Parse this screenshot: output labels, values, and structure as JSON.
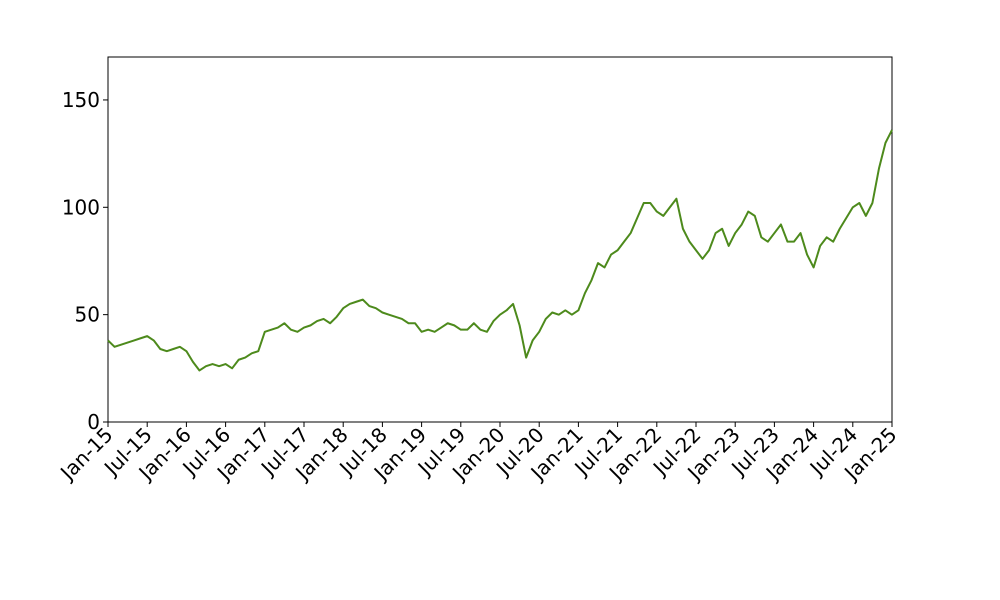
{
  "chart_data": {
    "type": "line",
    "x": [
      "2015-01",
      "2015-02",
      "2015-03",
      "2015-04",
      "2015-05",
      "2015-06",
      "2015-07",
      "2015-08",
      "2015-09",
      "2015-10",
      "2015-11",
      "2015-12",
      "2016-01",
      "2016-02",
      "2016-03",
      "2016-04",
      "2016-05",
      "2016-06",
      "2016-07",
      "2016-08",
      "2016-09",
      "2016-10",
      "2016-11",
      "2016-12",
      "2017-01",
      "2017-02",
      "2017-03",
      "2017-04",
      "2017-05",
      "2017-06",
      "2017-07",
      "2017-08",
      "2017-09",
      "2017-10",
      "2017-11",
      "2017-12",
      "2018-01",
      "2018-02",
      "2018-03",
      "2018-04",
      "2018-05",
      "2018-06",
      "2018-07",
      "2018-08",
      "2018-09",
      "2018-10",
      "2018-11",
      "2018-12",
      "2019-01",
      "2019-02",
      "2019-03",
      "2019-04",
      "2019-05",
      "2019-06",
      "2019-07",
      "2019-08",
      "2019-09",
      "2019-10",
      "2019-11",
      "2019-12",
      "2020-01",
      "2020-02",
      "2020-03",
      "2020-04",
      "2020-05",
      "2020-06",
      "2020-07",
      "2020-08",
      "2020-09",
      "2020-10",
      "2020-11",
      "2020-12",
      "2021-01",
      "2021-02",
      "2021-03",
      "2021-04",
      "2021-05",
      "2021-06",
      "2021-07",
      "2021-08",
      "2021-09",
      "2021-10",
      "2021-11",
      "2021-12",
      "2022-01",
      "2022-02",
      "2022-03",
      "2022-04",
      "2022-05",
      "2022-06",
      "2022-07",
      "2022-08",
      "2022-09",
      "2022-10",
      "2022-11",
      "2022-12",
      "2023-01",
      "2023-02",
      "2023-03",
      "2023-04",
      "2023-05",
      "2023-06",
      "2023-07",
      "2023-08",
      "2023-09",
      "2023-10",
      "2023-11",
      "2023-12",
      "2024-01",
      "2024-02",
      "2024-03",
      "2024-04",
      "2024-05",
      "2024-06",
      "2024-07",
      "2024-08",
      "2024-09",
      "2024-10",
      "2024-11",
      "2024-12",
      "2025-01"
    ],
    "values": [
      38,
      35,
      36,
      37,
      38,
      39,
      40,
      38,
      34,
      33,
      34,
      35,
      33,
      28,
      24,
      26,
      27,
      26,
      27,
      25,
      29,
      30,
      32,
      33,
      42,
      43,
      44,
      46,
      43,
      42,
      44,
      45,
      47,
      48,
      46,
      49,
      53,
      55,
      56,
      57,
      54,
      53,
      51,
      50,
      49,
      48,
      46,
      46,
      42,
      43,
      42,
      44,
      46,
      45,
      43,
      43,
      46,
      43,
      42,
      47,
      50,
      52,
      55,
      45,
      30,
      38,
      42,
      48,
      51,
      50,
      52,
      50,
      52,
      60,
      66,
      74,
      72,
      78,
      80,
      84,
      88,
      95,
      102,
      102,
      98,
      96,
      100,
      104,
      90,
      84,
      80,
      76,
      80,
      88,
      90,
      82,
      88,
      92,
      98,
      96,
      86,
      84,
      88,
      92,
      84,
      84,
      88,
      78,
      72,
      82,
      86,
      84,
      90,
      95,
      100,
      102,
      96,
      102,
      118,
      130,
      136
    ],
    "color": "#4d8a1c",
    "xlim": [
      "2015-01",
      "2025-01"
    ],
    "xticks": [
      {
        "value": "2015-01",
        "label": "Jan-15"
      },
      {
        "value": "2015-07",
        "label": "Jul-15"
      },
      {
        "value": "2016-01",
        "label": "Jan-16"
      },
      {
        "value": "2016-07",
        "label": "Jul-16"
      },
      {
        "value": "2017-01",
        "label": "Jan-17"
      },
      {
        "value": "2017-07",
        "label": "Jul-17"
      },
      {
        "value": "2018-01",
        "label": "Jan-18"
      },
      {
        "value": "2018-07",
        "label": "Jul-18"
      },
      {
        "value": "2019-01",
        "label": "Jan-19"
      },
      {
        "value": "2019-07",
        "label": "Jul-19"
      },
      {
        "value": "2020-01",
        "label": "Jan-20"
      },
      {
        "value": "2020-07",
        "label": "Jul-20"
      },
      {
        "value": "2021-01",
        "label": "Jan-21"
      },
      {
        "value": "2021-07",
        "label": "Jul-21"
      },
      {
        "value": "2022-01",
        "label": "Jan-22"
      },
      {
        "value": "2022-07",
        "label": "Jul-22"
      },
      {
        "value": "2023-01",
        "label": "Jan-23"
      },
      {
        "value": "2023-07",
        "label": "Jul-23"
      },
      {
        "value": "2024-01",
        "label": "Jan-24"
      },
      {
        "value": "2024-07",
        "label": "Jul-24"
      },
      {
        "value": "2025-01",
        "label": "Jan-25"
      }
    ],
    "ylim": [
      0,
      170
    ],
    "yticks": [
      0,
      50,
      100,
      150
    ],
    "grid": false
  }
}
